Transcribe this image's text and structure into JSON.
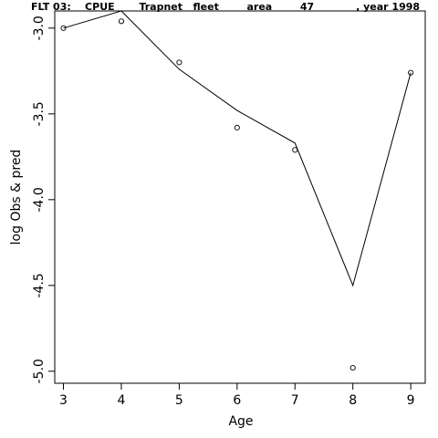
{
  "chart_data": {
    "type": "line",
    "title": "FLT 03:    CPUE       Trapnet   fleet        area        47            , year 1998",
    "xlabel": "Age",
    "ylabel": "log Obs & pred",
    "x": [
      3,
      4,
      5,
      6,
      7,
      8,
      9
    ],
    "x_ticks": [
      "3",
      "4",
      "5",
      "6",
      "7",
      "8",
      "9"
    ],
    "y_ticks": [
      "-3.0",
      "-3.5",
      "-4.0",
      "-4.5",
      "-5.0"
    ],
    "y_tick_values": [
      -3.0,
      -3.5,
      -4.0,
      -4.5,
      -5.0
    ],
    "xlim": [
      2.85,
      9.25
    ],
    "ylim": [
      -5.07,
      -2.9
    ],
    "grid": false,
    "series": [
      {
        "style": "points",
        "values": [
          -3.0,
          -2.96,
          -3.2,
          -3.58,
          -3.71,
          -4.98,
          -3.26
        ]
      },
      {
        "style": "line",
        "values": [
          -3.0,
          -2.9,
          -3.24,
          -3.48,
          -3.67,
          -4.5,
          -3.26
        ]
      }
    ]
  }
}
